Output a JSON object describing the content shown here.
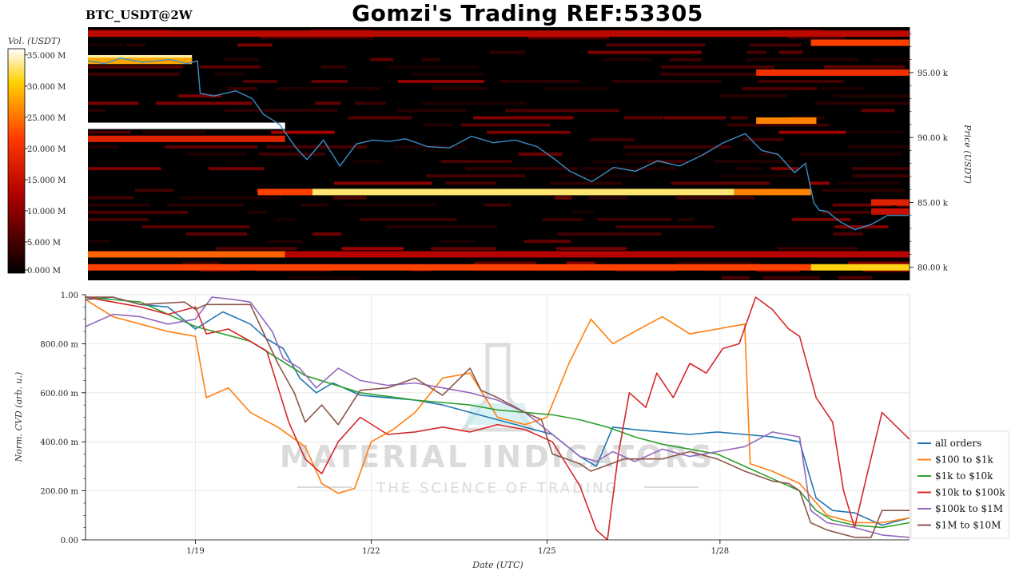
{
  "header": {
    "title": "Gomzi's Trading REF:53305",
    "symbol": "BTC_USDT@2W"
  },
  "watermark": {
    "line1": "MATERIAL INDICATORS",
    "line2": "THE SCIENCE OF TRADING"
  },
  "colors": {
    "heat_background": "#000000",
    "price_line": "#3a8fc8",
    "grid": "#e4e4e4"
  },
  "chart_data": [
    {
      "type": "heatmap",
      "title": "",
      "colorbar": {
        "label": "Vol. (USDT)",
        "ticks": [
          "0.000 M",
          "5.000 M",
          "10.000 M",
          "15.000 M",
          "20.000 M",
          "25.000 M",
          "30.000 M",
          "35.000 M"
        ],
        "range": [
          0,
          36
        ],
        "colormap": "hot"
      },
      "ylabel": "Price (USDT)",
      "yticks": [
        "80.00 k",
        "85.00 k",
        "90.00 k",
        "95.00 k"
      ],
      "ylim": [
        79000,
        98500
      ],
      "xlim": [
        0,
        15
      ],
      "price_series": {
        "name": "",
        "x": [
          0,
          0.3,
          0.6,
          1.0,
          1.5,
          1.8,
          2.0,
          2.05,
          2.3,
          2.7,
          3.0,
          3.2,
          3.5,
          3.8,
          4.0,
          4.3,
          4.6,
          4.9,
          5.2,
          5.5,
          5.8,
          6.2,
          6.6,
          7.0,
          7.4,
          7.8,
          8.2,
          8.5,
          8.8,
          9.2,
          9.6,
          10.0,
          10.4,
          10.8,
          11.2,
          11.6,
          12.0,
          12.3,
          12.6,
          12.9,
          13.1,
          13.25,
          13.35,
          13.5,
          13.7,
          14.0,
          14.3,
          14.6,
          15.0
        ],
        "y": [
          95900,
          95700,
          96100,
          95800,
          96000,
          95700,
          95900,
          93400,
          93200,
          93600,
          93000,
          91800,
          91000,
          89200,
          88300,
          89800,
          87800,
          89500,
          89800,
          89700,
          89900,
          89300,
          89200,
          90100,
          89600,
          89800,
          89300,
          88400,
          87400,
          86600,
          87700,
          87400,
          88200,
          87800,
          88600,
          89600,
          90300,
          89000,
          88700,
          87300,
          88000,
          85000,
          84400,
          84300,
          83600,
          82900,
          83300,
          84000,
          84000
        ]
      },
      "bands": [
        {
          "price": 96100,
          "start": 0,
          "end": 1.9,
          "level": 34
        },
        {
          "price": 95900,
          "start": 0,
          "end": 1.9,
          "level": 28
        },
        {
          "price": 90900,
          "start": 0,
          "end": 3.6,
          "level": 36
        },
        {
          "price": 89900,
          "start": 0,
          "end": 3.6,
          "level": 18
        },
        {
          "price": 85800,
          "start": 3.1,
          "end": 4.1,
          "level": 22
        },
        {
          "price": 85800,
          "start": 4.1,
          "end": 11.8,
          "level": 33
        },
        {
          "price": 85800,
          "start": 11.8,
          "end": 13.2,
          "level": 26
        },
        {
          "price": 81000,
          "start": 0,
          "end": 3.6,
          "level": 24
        },
        {
          "price": 81000,
          "start": 3.6,
          "end": 15,
          "level": 13
        },
        {
          "price": 80000,
          "start": 0,
          "end": 13.2,
          "level": 22
        },
        {
          "price": 80000,
          "start": 13.2,
          "end": 15,
          "level": 31
        },
        {
          "price": 97300,
          "start": 13.2,
          "end": 15,
          "level": 22
        },
        {
          "price": 95000,
          "start": 12.2,
          "end": 15,
          "level": 20
        },
        {
          "price": 91300,
          "start": 12.2,
          "end": 13.3,
          "level": 26
        },
        {
          "price": 85000,
          "start": 14.3,
          "end": 15,
          "level": 18
        },
        {
          "price": 84300,
          "start": 14.3,
          "end": 15,
          "level": 15
        },
        {
          "price": 98000,
          "start": 0,
          "end": 15,
          "level": 14
        }
      ]
    },
    {
      "type": "line",
      "title": "",
      "xlabel": "Date (UTC)",
      "ylabel": "Norm. CVD (arb. u.)",
      "xlim": [
        0,
        15
      ],
      "ylim": [
        0,
        1
      ],
      "xticks": [
        {
          "pos": 2,
          "label": "1/19"
        },
        {
          "pos": 5.2,
          "label": "1/22"
        },
        {
          "pos": 8.4,
          "label": "1/25"
        },
        {
          "pos": 11.55,
          "label": "1/28"
        }
      ],
      "yticks": [
        {
          "value": 0,
          "label": "0.00"
        },
        {
          "value": 0.2,
          "label": "200.00 m"
        },
        {
          "value": 0.4,
          "label": "400.00 m"
        },
        {
          "value": 0.6,
          "label": "600.00 m"
        },
        {
          "value": 0.8,
          "label": "800.00 m"
        },
        {
          "value": 1,
          "label": "1.00"
        }
      ],
      "legend_position": "lower-right",
      "series": [
        {
          "name": "all orders",
          "color": "#1f77b4",
          "x": [
            0,
            0.5,
            1.0,
            1.5,
            2.0,
            2.5,
            3.0,
            3.3,
            3.6,
            3.9,
            4.2,
            4.5,
            5.0,
            5.5,
            6.0,
            6.5,
            7.0,
            7.5,
            8.0,
            8.5,
            9.0,
            9.3,
            9.6,
            10.0,
            10.5,
            11.0,
            11.5,
            12.0,
            12.5,
            13.0,
            13.3,
            13.6,
            14.0,
            14.5,
            15.0
          ],
          "y": [
            0.98,
            0.99,
            0.96,
            0.95,
            0.86,
            0.93,
            0.88,
            0.82,
            0.78,
            0.66,
            0.6,
            0.64,
            0.59,
            0.58,
            0.57,
            0.55,
            0.52,
            0.49,
            0.46,
            0.43,
            0.34,
            0.3,
            0.46,
            0.45,
            0.44,
            0.43,
            0.44,
            0.43,
            0.42,
            0.4,
            0.17,
            0.12,
            0.11,
            0.06,
            0.09
          ]
        },
        {
          "name": "$100 to $1k",
          "color": "#ff7f0e",
          "x": [
            0,
            0.5,
            1.0,
            1.5,
            2.0,
            2.2,
            2.6,
            3.0,
            3.5,
            4.0,
            4.3,
            4.6,
            4.9,
            5.2,
            5.6,
            6.0,
            6.5,
            7.0,
            7.5,
            8.0,
            8.4,
            8.8,
            9.2,
            9.6,
            10.0,
            10.5,
            11.0,
            11.5,
            12.0,
            12.1,
            12.5,
            13.0,
            13.5,
            14.0,
            14.5,
            15.0
          ],
          "y": [
            0.98,
            0.91,
            0.88,
            0.85,
            0.83,
            0.58,
            0.62,
            0.52,
            0.46,
            0.38,
            0.23,
            0.19,
            0.21,
            0.4,
            0.45,
            0.52,
            0.66,
            0.68,
            0.5,
            0.47,
            0.5,
            0.72,
            0.9,
            0.8,
            0.85,
            0.91,
            0.84,
            0.86,
            0.88,
            0.31,
            0.28,
            0.23,
            0.1,
            0.07,
            0.07,
            0.09
          ]
        },
        {
          "name": "$1k to $10k",
          "color": "#2ca02c",
          "x": [
            0,
            1.0,
            2.0,
            3.0,
            4.0,
            5.0,
            6.0,
            7.0,
            7.5,
            8.0,
            8.5,
            9.0,
            9.5,
            10.0,
            10.5,
            11.0,
            11.5,
            12.0,
            12.5,
            13.0,
            13.3,
            13.6,
            14.0,
            14.5,
            15.0
          ],
          "y": [
            0.99,
            0.97,
            0.87,
            0.81,
            0.67,
            0.6,
            0.57,
            0.55,
            0.53,
            0.52,
            0.51,
            0.49,
            0.46,
            0.42,
            0.39,
            0.37,
            0.35,
            0.3,
            0.25,
            0.2,
            0.12,
            0.08,
            0.06,
            0.05,
            0.07
          ]
        },
        {
          "name": "$10k to $100k",
          "color": "#d62728",
          "x": [
            0,
            0.5,
            1.0,
            1.5,
            2.0,
            2.2,
            2.6,
            3.0,
            3.3,
            3.7,
            4.0,
            4.3,
            4.6,
            5.0,
            5.5,
            6.0,
            6.5,
            7.0,
            7.5,
            8.0,
            8.5,
            9.0,
            9.3,
            9.5,
            9.7,
            9.9,
            10.2,
            10.4,
            10.7,
            11.0,
            11.3,
            11.6,
            11.9,
            12.2,
            12.5,
            12.8,
            13.0,
            13.3,
            13.6,
            13.8,
            14.0,
            14.2,
            14.5,
            15.0
          ],
          "y": [
            0.99,
            0.97,
            0.95,
            0.92,
            0.95,
            0.84,
            0.86,
            0.81,
            0.77,
            0.48,
            0.33,
            0.27,
            0.4,
            0.5,
            0.43,
            0.44,
            0.46,
            0.44,
            0.47,
            0.45,
            0.4,
            0.22,
            0.04,
            0.0,
            0.35,
            0.6,
            0.54,
            0.68,
            0.58,
            0.72,
            0.68,
            0.78,
            0.8,
            0.99,
            0.94,
            0.86,
            0.83,
            0.58,
            0.48,
            0.2,
            0.05,
            0.24,
            0.52,
            0.41
          ]
        },
        {
          "name": "$100k to $1M",
          "color": "#9467bd",
          "x": [
            0,
            0.5,
            1.0,
            1.5,
            2.0,
            2.3,
            2.7,
            3.0,
            3.4,
            3.6,
            3.9,
            4.2,
            4.6,
            5.0,
            5.5,
            6.0,
            6.5,
            7.0,
            7.5,
            8.0,
            8.5,
            9.0,
            9.3,
            9.6,
            10.0,
            10.5,
            11.0,
            11.5,
            12.0,
            12.5,
            13.0,
            13.2,
            13.5,
            14.0,
            14.5,
            15.0
          ],
          "y": [
            0.87,
            0.92,
            0.91,
            0.88,
            0.9,
            0.99,
            0.98,
            0.97,
            0.85,
            0.74,
            0.7,
            0.62,
            0.7,
            0.65,
            0.63,
            0.64,
            0.62,
            0.6,
            0.57,
            0.52,
            0.43,
            0.34,
            0.32,
            0.36,
            0.32,
            0.37,
            0.34,
            0.36,
            0.38,
            0.44,
            0.42,
            0.12,
            0.07,
            0.05,
            0.02,
            0.01
          ]
        },
        {
          "name": "$1M to $10M",
          "color": "#8c564b",
          "x": [
            0,
            0.5,
            1.0,
            1.8,
            2.0,
            2.2,
            2.5,
            3.0,
            3.5,
            3.8,
            4.0,
            4.3,
            4.6,
            5.0,
            5.5,
            6.0,
            6.5,
            7.0,
            7.2,
            7.5,
            8.0,
            8.3,
            8.5,
            9.0,
            9.2,
            9.8,
            10.5,
            11.0,
            11.5,
            12.0,
            12.5,
            12.8,
            13.0,
            13.2,
            13.5,
            14.0,
            14.3,
            14.5,
            15.0
          ],
          "y": [
            0.99,
            0.99,
            0.96,
            0.97,
            0.94,
            0.96,
            0.96,
            0.96,
            0.72,
            0.6,
            0.48,
            0.55,
            0.47,
            0.61,
            0.62,
            0.66,
            0.59,
            0.7,
            0.61,
            0.58,
            0.52,
            0.49,
            0.35,
            0.31,
            0.28,
            0.33,
            0.33,
            0.36,
            0.33,
            0.28,
            0.24,
            0.23,
            0.2,
            0.07,
            0.04,
            0.01,
            0.01,
            0.12,
            0.12
          ]
        }
      ]
    }
  ]
}
